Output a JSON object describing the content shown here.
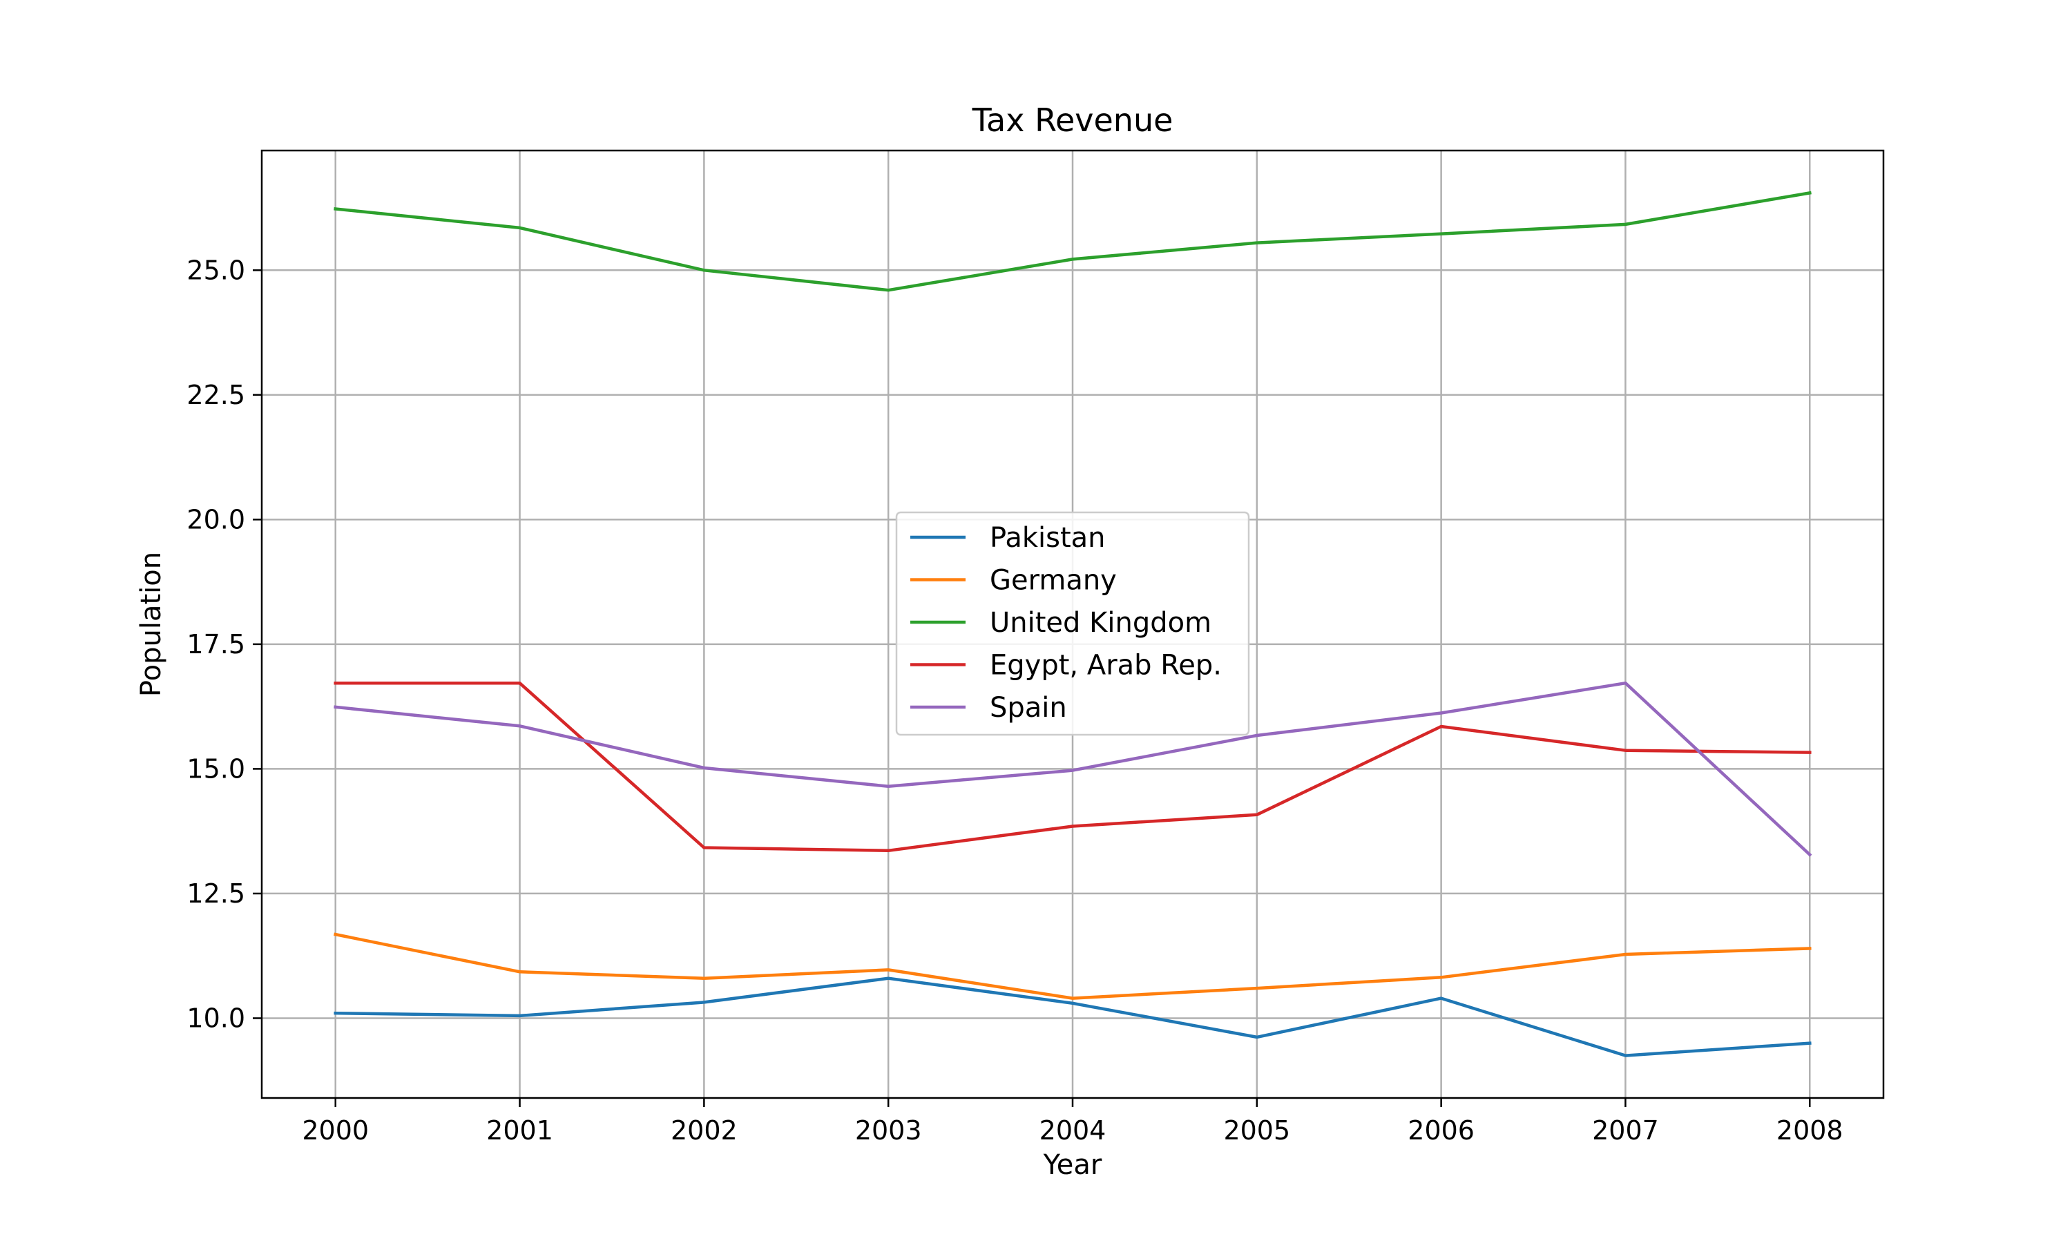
{
  "chart_data": {
    "type": "line",
    "title": "Tax Revenue",
    "xlabel": "Year",
    "ylabel": "Population",
    "x": [
      2000,
      2001,
      2002,
      2003,
      2004,
      2005,
      2006,
      2007,
      2008
    ],
    "x_ticks": [
      "2000",
      "2001",
      "2002",
      "2003",
      "2004",
      "2005",
      "2006",
      "2007",
      "2008"
    ],
    "y_ticks": [
      10.0,
      12.5,
      15.0,
      17.5,
      20.0,
      22.5,
      25.0
    ],
    "y_tick_labels": [
      "10.0",
      "12.5",
      "15.0",
      "17.5",
      "20.0",
      "22.5",
      "25.0"
    ],
    "xlim": [
      1999.6,
      2008.4
    ],
    "ylim": [
      8.4,
      27.4
    ],
    "grid": true,
    "legend_position": "center",
    "series": [
      {
        "name": "Pakistan",
        "color": "#1f77b4",
        "values": [
          10.1,
          10.05,
          10.32,
          10.8,
          10.3,
          9.62,
          10.4,
          9.25,
          9.5
        ]
      },
      {
        "name": "Germany",
        "color": "#ff7f0e",
        "values": [
          11.68,
          10.93,
          10.8,
          10.97,
          10.4,
          10.6,
          10.82,
          11.28,
          11.4
        ]
      },
      {
        "name": "United Kingdom",
        "color": "#2ca02c",
        "values": [
          26.23,
          25.85,
          25.0,
          24.6,
          25.22,
          25.55,
          25.73,
          25.92,
          26.55
        ]
      },
      {
        "name": "Egypt, Arab Rep.",
        "color": "#d62728",
        "values": [
          16.72,
          16.72,
          13.42,
          13.36,
          13.85,
          14.08,
          15.85,
          15.37,
          15.33
        ]
      },
      {
        "name": "Spain",
        "color": "#9467bd",
        "values": [
          16.24,
          15.86,
          15.02,
          14.65,
          14.97,
          15.67,
          16.12,
          16.72,
          13.28
        ]
      }
    ]
  }
}
